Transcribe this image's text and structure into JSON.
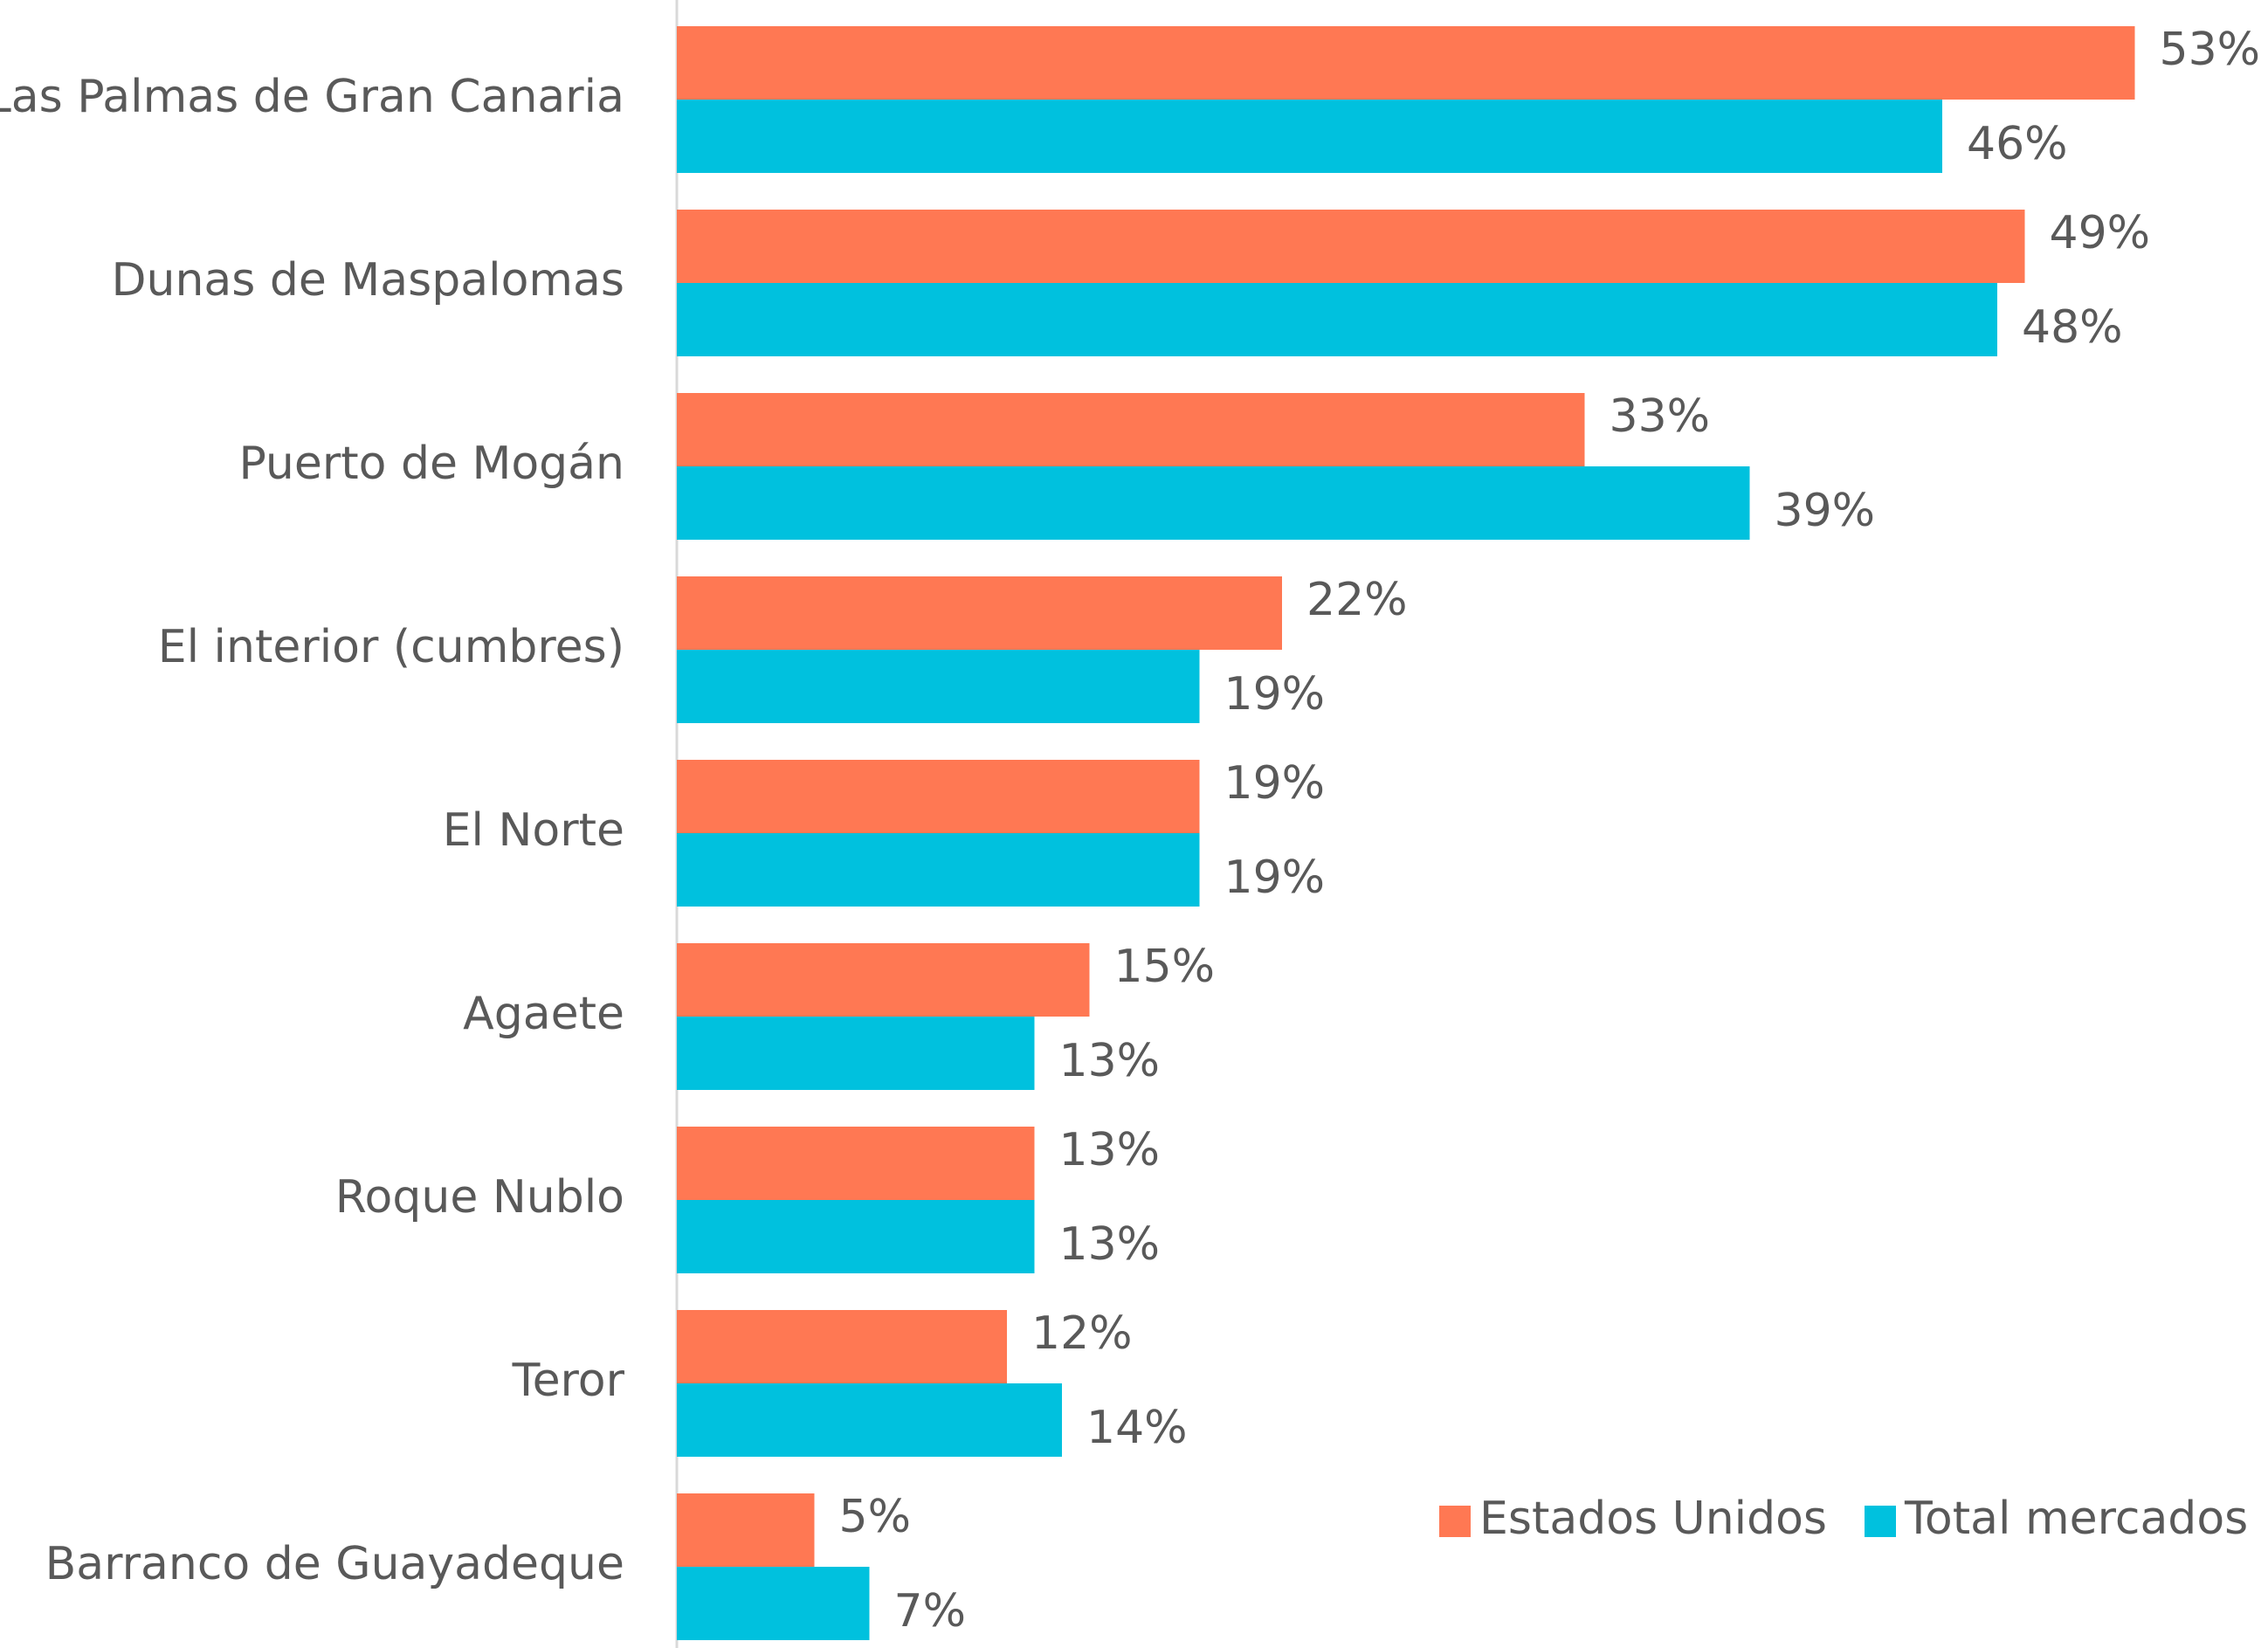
{
  "chart_data": {
    "type": "bar",
    "orientation": "horizontal",
    "categories": [
      "Las Palmas de Gran Canaria",
      "Dunas de Maspalomas",
      "Puerto de Mogán",
      "El interior (cumbres)",
      "El Norte",
      "Agaete",
      "Roque Nublo",
      "Teror",
      "Barranco de Guayadeque"
    ],
    "series": [
      {
        "name": "Estados Unidos",
        "color": "#ff7853",
        "values": [
          53,
          49,
          33,
          22,
          19,
          15,
          13,
          12,
          5
        ],
        "value_labels": [
          "53%",
          "49%",
          "33%",
          "22%",
          "19%",
          "15%",
          "13%",
          "12%",
          "5%"
        ]
      },
      {
        "name": "Total mercados",
        "color": "#00c1de",
        "values": [
          46,
          48,
          39,
          19,
          19,
          13,
          13,
          14,
          7
        ],
        "value_labels": [
          "46%",
          "48%",
          "39%",
          "19%",
          "19%",
          "13%",
          "13%",
          "14%",
          "7%"
        ]
      }
    ],
    "legend": "lower right"
  }
}
